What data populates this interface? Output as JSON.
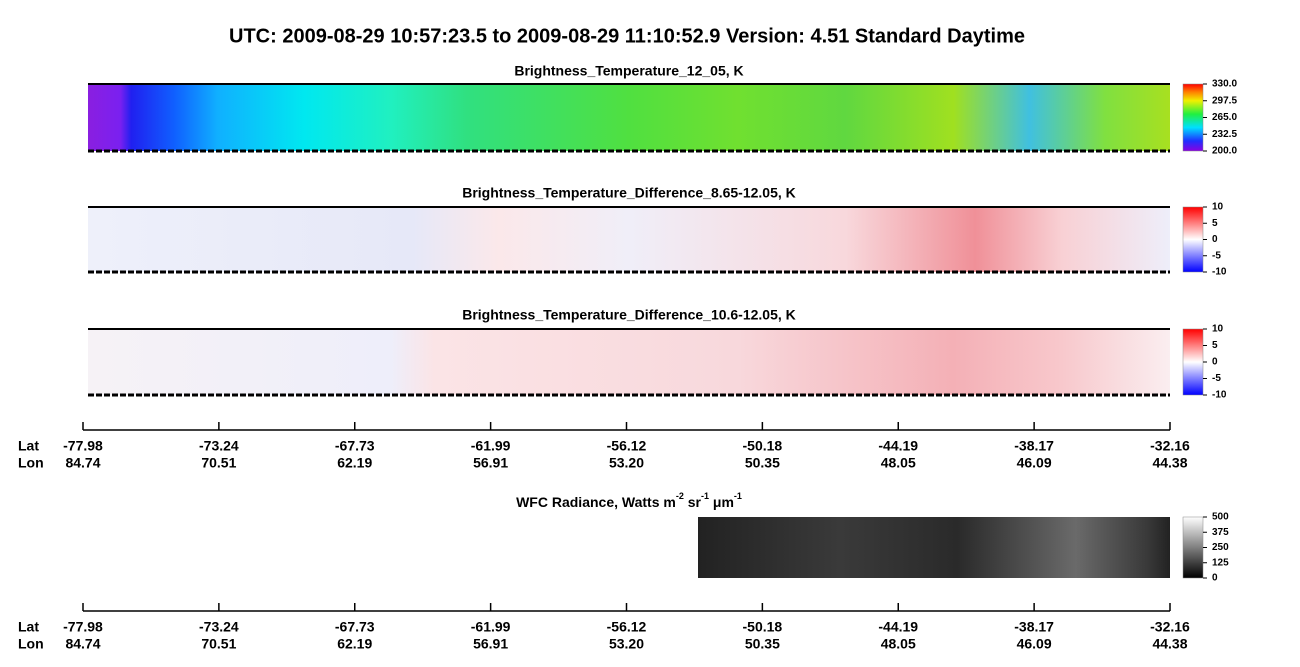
{
  "title": "UTC:  2009-08-29   10:57:23.5  to  2009-08-29   11:10:52.9    Version: 4.51  Standard Daytime",
  "panels": [
    {
      "title": "Brightness_Temperature_12_05, K",
      "lim": [
        200,
        330
      ],
      "ticks": [
        {
          "value": 330,
          "label": "330.0"
        },
        297.5,
        {
          "value": 265,
          "label": "265.0"
        },
        232.5,
        {
          "value": 200,
          "label": "200.0"
        }
      ]
    },
    {
      "title": "Brightness_Temperature_Difference_8.65-12.05, K",
      "lim": [
        -10,
        10
      ],
      "ticks": [
        10,
        5,
        0,
        -5,
        -10
      ]
    },
    {
      "title": "Brightness_Temperature_Difference_10.6-12.05, K",
      "lim": [
        -10,
        10
      ],
      "ticks": [
        10,
        5,
        0,
        -5,
        -10
      ]
    },
    {
      "title_parts": [
        "WFC Radiance, Watts m",
        "-2",
        " sr",
        "-1",
        " μm",
        "-1"
      ],
      "lim": [
        0,
        500
      ],
      "ticks": [
        500,
        375,
        250,
        125,
        0
      ]
    }
  ],
  "axis": {
    "lat_label": "Lat",
    "lon_label": "Lon",
    "lat": [
      "-77.98",
      "-73.24",
      "-67.73",
      "-61.99",
      "-56.12",
      "-50.18",
      "-44.19",
      "-38.17",
      "-32.16"
    ],
    "lon": [
      "84.74",
      "70.51",
      "62.19",
      "56.91",
      "53.20",
      "50.35",
      "48.05",
      "46.09",
      "44.38"
    ]
  }
}
